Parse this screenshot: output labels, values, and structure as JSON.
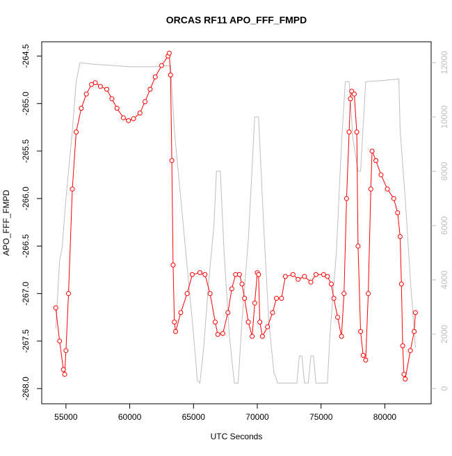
{
  "chart_data": {
    "type": "line",
    "title": "ORCAS RF11 APO_FFF_FMPD",
    "x_label": "UTC Seconds",
    "y_label": "APO_FFF_FMPD",
    "xlim": [
      53100,
      83630
    ],
    "ylim": [
      -268.16,
      -264.35
    ],
    "y2lim": [
      -564,
      12769
    ],
    "xticks": [
      55000,
      60000,
      65000,
      70000,
      75000,
      80000
    ],
    "yticks": [
      {
        "value": -268,
        "label": "-268.0"
      },
      -267.5,
      {
        "value": -267,
        "label": "-267.0"
      },
      -266.5,
      {
        "value": -266,
        "label": "-266.0"
      },
      -265.5,
      {
        "value": -265,
        "label": "-265.0"
      },
      -264.5
    ],
    "y2ticks": [
      0,
      2000,
      4000,
      6000,
      8000,
      10000,
      12000
    ],
    "series": [
      {
        "color": "#ff0000",
        "marker": "circle",
        "x": [
          54200,
          54500,
          54800,
          54900,
          55000,
          55200,
          55500,
          55800,
          56200,
          56600,
          57000,
          57300,
          57700,
          58200,
          58600,
          59000,
          59500,
          59900,
          60300,
          60800,
          61200,
          61600,
          62000,
          62500,
          63000,
          63100,
          63200,
          63300,
          63400,
          63500,
          63600,
          64000,
          64500,
          64900,
          65500,
          65900,
          66300,
          66700,
          66900,
          67300,
          67700,
          68000,
          68300,
          68600,
          68800,
          69000,
          69300,
          69600,
          69800,
          70000,
          70100,
          70200,
          70400,
          70800,
          71200,
          71500,
          71900,
          72200,
          72800,
          73200,
          73700,
          74200,
          74600,
          75200,
          75500,
          75800,
          76000,
          76300,
          76600,
          76800,
          77000,
          77200,
          77300,
          77400,
          77600,
          77800,
          77900,
          78100,
          78300,
          78500,
          78700,
          78900,
          79000,
          79300,
          79700,
          80200,
          80700,
          81000,
          81200,
          81300,
          81400,
          81500,
          81600,
          82000,
          82300,
          82400
        ],
        "values": [
          -267.15,
          -267.5,
          -267.8,
          -267.85,
          -267.6,
          -267.0,
          -265.9,
          -265.3,
          -265.05,
          -264.9,
          -264.8,
          -264.78,
          -264.82,
          -264.85,
          -264.95,
          -265.05,
          -265.15,
          -265.18,
          -265.16,
          -265.1,
          -264.98,
          -264.85,
          -264.72,
          -264.6,
          -264.5,
          -264.47,
          -264.7,
          -265.6,
          -266.7,
          -267.3,
          -267.4,
          -267.2,
          -267.0,
          -266.8,
          -266.78,
          -266.8,
          -267.0,
          -267.3,
          -267.43,
          -267.42,
          -267.2,
          -266.95,
          -266.8,
          -266.8,
          -266.9,
          -267.05,
          -267.3,
          -267.45,
          -267.1,
          -266.78,
          -266.8,
          -267.3,
          -267.45,
          -267.35,
          -267.2,
          -267.05,
          -267.05,
          -266.82,
          -266.8,
          -266.85,
          -266.82,
          -266.88,
          -266.8,
          -266.8,
          -266.82,
          -266.9,
          -267.05,
          -267.25,
          -267.45,
          -267.0,
          -266.0,
          -265.3,
          -264.95,
          -264.87,
          -264.9,
          -265.3,
          -266.5,
          -267.4,
          -267.65,
          -267.7,
          -267.0,
          -265.9,
          -265.5,
          -265.6,
          -265.75,
          -265.9,
          -266.0,
          -266.15,
          -266.4,
          -266.9,
          -267.55,
          -267.85,
          -267.9,
          -267.6,
          -267.4,
          -267.2
        ]
      },
      {
        "color": "#bebebe",
        "axis": "y2",
        "x": [
          54200,
          54500,
          54700,
          55000,
          55500,
          55800,
          56100,
          57000,
          58500,
          60000,
          62000,
          63200,
          63500,
          64000,
          64500,
          65000,
          65300,
          65500,
          65800,
          66200,
          66600,
          66800,
          67100,
          67400,
          67800,
          68200,
          68500,
          68800,
          69300,
          69800,
          70100,
          70500,
          70900,
          71300,
          71600,
          72300,
          73100,
          73300,
          73500,
          73700,
          74000,
          74200,
          74400,
          74600,
          75500,
          75700,
          76200,
          76600,
          76900,
          77200,
          77500,
          77900,
          78100,
          78500,
          80000,
          81100,
          81200,
          81600,
          82000,
          82400
        ],
        "values": [
          2200,
          4700,
          5200,
          7000,
          9500,
          11300,
          12000,
          11950,
          11900,
          11850,
          11850,
          11900,
          9500,
          7000,
          4500,
          2000,
          300,
          200,
          1500,
          4000,
          6000,
          8000,
          8000,
          5000,
          2000,
          200,
          200,
          2500,
          5500,
          10000,
          10000,
          6000,
          2500,
          600,
          200,
          200,
          200,
          1200,
          1200,
          200,
          200,
          1200,
          1200,
          200,
          200,
          2000,
          5000,
          9000,
          11300,
          11300,
          9200,
          8000,
          8000,
          11300,
          11350,
          11400,
          9500,
          7000,
          4000,
          1500
        ]
      }
    ]
  }
}
